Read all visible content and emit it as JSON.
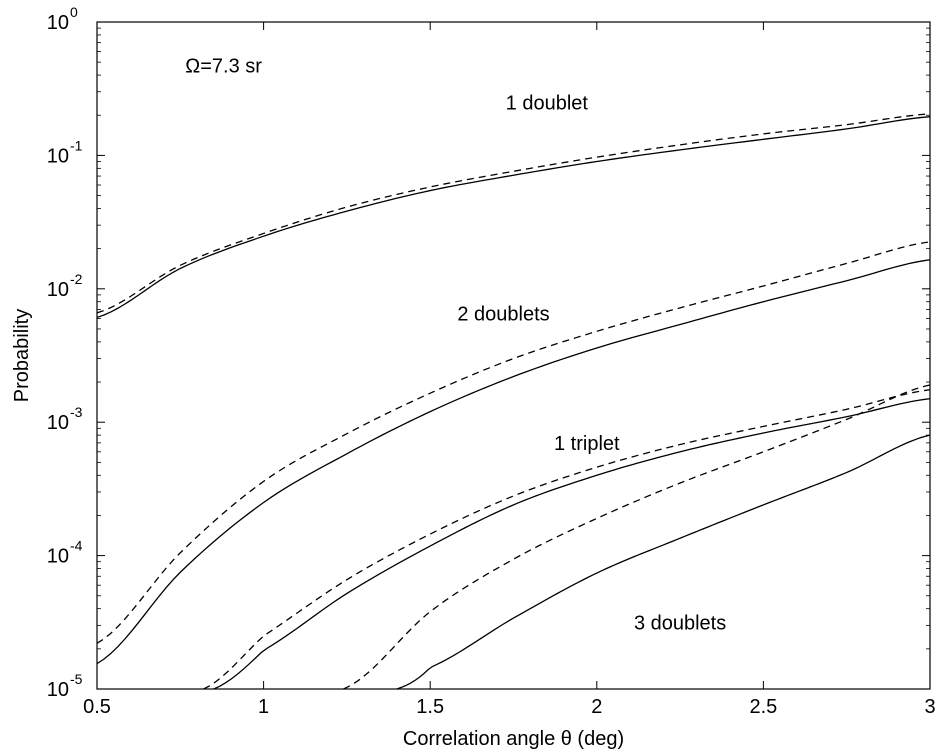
{
  "chart_data": {
    "type": "line",
    "title": "",
    "xlabel": "Correlation angle θ (deg)",
    "ylabel": "Probability",
    "xlim": [
      0.5,
      3
    ],
    "ylim": [
      1e-05,
      1
    ],
    "yscale": "log",
    "grid": false,
    "x_ticks": [
      "0.5",
      "1",
      "1.5",
      "2",
      "2.5",
      "3"
    ],
    "y_ticks": [
      {
        "base": "10",
        "exp": "-5"
      },
      {
        "base": "10",
        "exp": "-4"
      },
      {
        "base": "10",
        "exp": "-3"
      },
      {
        "base": "10",
        "exp": "-2"
      },
      {
        "base": "10",
        "exp": "-1"
      },
      {
        "base": "10",
        "exp": "0"
      }
    ],
    "annotations": [
      {
        "text": "Ω=7.3 sr",
        "x": 0.88,
        "y": 0.42
      },
      {
        "text": "1 doublet",
        "x": 1.85,
        "y": 0.22
      },
      {
        "text": "2 doublets",
        "x": 1.72,
        "y": 0.0058
      },
      {
        "text": "1 triplet",
        "x": 1.97,
        "y": 0.00062
      },
      {
        "text": "3 doublets",
        "x": 2.25,
        "y": 2.8e-05
      }
    ],
    "series": [
      {
        "style": "solid",
        "x": [
          0.5,
          0.75,
          1.0,
          1.25,
          1.5,
          1.75,
          2.0,
          2.25,
          2.5,
          2.75,
          3.0
        ],
        "y": [
          0.0061,
          0.0142,
          0.0248,
          0.0382,
          0.0545,
          0.071,
          0.09,
          0.11,
          0.132,
          0.158,
          0.195
        ]
      },
      {
        "style": "dashed",
        "x": [
          0.5,
          0.75,
          1.0,
          1.25,
          1.5,
          1.75,
          2.0,
          2.25,
          2.5,
          2.75,
          3.0
        ],
        "y": [
          0.0066,
          0.015,
          0.026,
          0.041,
          0.058,
          0.076,
          0.097,
          0.12,
          0.145,
          0.17,
          0.205
        ]
      },
      {
        "style": "solid",
        "x": [
          0.5,
          0.75,
          1.0,
          1.25,
          1.5,
          1.75,
          2.0,
          2.25,
          2.5,
          2.75,
          3.0
        ],
        "y": [
          1.55e-05,
          7.5e-05,
          0.00025,
          0.00058,
          0.0012,
          0.0022,
          0.0036,
          0.0054,
          0.008,
          0.0115,
          0.0165
        ]
      },
      {
        "style": "dashed",
        "x": [
          0.5,
          0.75,
          1.0,
          1.25,
          1.5,
          1.75,
          2.0,
          2.25,
          2.5,
          2.75,
          3.0
        ],
        "y": [
          2.2e-05,
          0.000105,
          0.00036,
          0.00082,
          0.00165,
          0.003,
          0.0048,
          0.0072,
          0.0105,
          0.0155,
          0.0225
        ]
      },
      {
        "style": "solid",
        "x": [
          0.85,
          1.0,
          1.25,
          1.5,
          1.75,
          2.0,
          2.25,
          2.5,
          2.75,
          3.0
        ],
        "y": [
          1e-05,
          1.95e-05,
          5.2e-05,
          0.000118,
          0.00024,
          0.0004,
          0.0006,
          0.00083,
          0.0011,
          0.0015
        ]
      },
      {
        "style": "dashed",
        "x": [
          0.82,
          1.0,
          1.25,
          1.5,
          1.75,
          2.0,
          2.25,
          2.5,
          2.75,
          3.0
        ],
        "y": [
          1e-05,
          2.5e-05,
          6.6e-05,
          0.000145,
          0.00028,
          0.00046,
          0.00068,
          0.00093,
          0.00125,
          0.00175
        ]
      },
      {
        "style": "solid",
        "x": [
          1.4,
          1.5,
          1.75,
          2.0,
          2.25,
          2.5,
          2.75,
          3.0
        ],
        "y": [
          1e-05,
          1.45e-05,
          3.4e-05,
          7.4e-05,
          0.000135,
          0.00024,
          0.00042,
          0.0008
        ]
      },
      {
        "style": "dashed",
        "x": [
          1.24,
          1.25,
          1.5,
          1.75,
          2.0,
          2.25,
          2.5,
          2.75,
          3.0
        ],
        "y": [
          1e-05,
          1.03e-05,
          3.8e-05,
          9.4e-05,
          0.00019,
          0.00035,
          0.0006,
          0.00105,
          0.0019
        ]
      }
    ]
  }
}
